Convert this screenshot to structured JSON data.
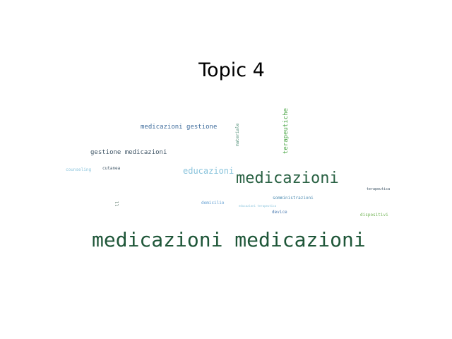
{
  "title": "Topic 4",
  "words": [
    {
      "text": "medicazioni medicazioni",
      "color": "#1e5638"
    },
    {
      "text": "medicazioni",
      "color": "#2a6244"
    },
    {
      "text": "medicazioni gestione",
      "color": "#3e6c9c"
    },
    {
      "text": "gestione medicazioni",
      "color": "#3f5566"
    },
    {
      "text": "educazioni",
      "color": "#8ac4dc"
    },
    {
      "text": "terapeutiche",
      "color": "#4fa84a"
    },
    {
      "text": "materiale",
      "color": "#4c8c74"
    },
    {
      "text": "counseling",
      "color": "#8ac4dc"
    },
    {
      "text": "cutanea",
      "color": "#3f5566"
    },
    {
      "text": "somministrazioni",
      "color": "#4a8ab0"
    },
    {
      "text": "terapeutica",
      "color": "#3f5566"
    },
    {
      "text": "domicilio",
      "color": "#5a9ad0"
    },
    {
      "text": "educazioni terapeutica",
      "color": "#8ac4dc"
    },
    {
      "text": "device",
      "color": "#4a7ab0"
    },
    {
      "text": "dispositivi",
      "color": "#6ab04c"
    },
    {
      "text": "ll",
      "color": "#4a6a5a"
    }
  ]
}
